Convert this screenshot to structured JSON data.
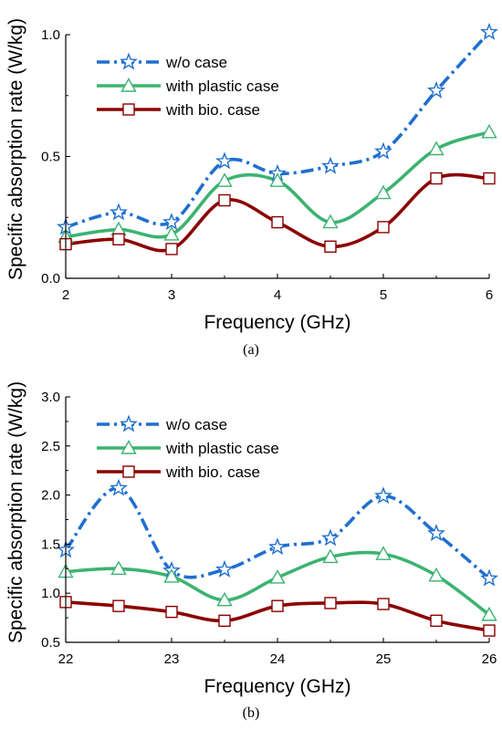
{
  "chart_data": [
    {
      "type": "line",
      "caption": "(a)",
      "xlabel": "Frequency (GHz)",
      "ylabel": "Specific absorption rate (W/kg)",
      "xlim": [
        2,
        6
      ],
      "ylim": [
        0.0,
        1.0
      ],
      "xticks": [
        "2",
        "3",
        "4",
        "5",
        "6"
      ],
      "yticks": [
        "0.0",
        "0.5",
        "1.0"
      ],
      "legend_position": "top-left",
      "x": [
        2,
        2.5,
        3,
        3.5,
        4,
        4.5,
        5,
        5.5,
        6
      ],
      "series": [
        {
          "name": "w/o case",
          "color": "#1f6fd0",
          "marker": "star",
          "dash": "dashdot",
          "values": [
            0.21,
            0.27,
            0.23,
            0.48,
            0.43,
            0.46,
            0.52,
            0.77,
            1.01
          ]
        },
        {
          "name": "with plastic case",
          "color": "#3cb371",
          "marker": "triangle",
          "dash": "solid",
          "values": [
            0.17,
            0.2,
            0.18,
            0.4,
            0.4,
            0.23,
            0.35,
            0.53,
            0.6
          ]
        },
        {
          "name": "with bio. case",
          "color": "#8b0000",
          "marker": "square",
          "dash": "solid",
          "values": [
            0.14,
            0.16,
            0.12,
            0.32,
            0.23,
            0.13,
            0.21,
            0.41,
            0.41
          ]
        }
      ]
    },
    {
      "type": "line",
      "caption": "(b)",
      "xlabel": "Frequency (GHz)",
      "ylabel": "Specific absorption rate (W/kg)",
      "xlim": [
        22,
        26
      ],
      "ylim": [
        0.5,
        3.0
      ],
      "xticks": [
        "22",
        "23",
        "24",
        "25",
        "26"
      ],
      "yticks": [
        "0.5",
        "1.0",
        "1.5",
        "2.0",
        "2.5",
        "3.0"
      ],
      "legend_position": "top-left",
      "x": [
        22,
        22.5,
        23,
        23.5,
        24,
        24.5,
        25,
        25.5,
        26
      ],
      "series": [
        {
          "name": "w/o case",
          "color": "#1f6fd0",
          "marker": "star",
          "dash": "dashdot",
          "values": [
            1.44,
            2.07,
            1.23,
            1.24,
            1.47,
            1.56,
            1.99,
            1.61,
            1.15
          ]
        },
        {
          "name": "with plastic case",
          "color": "#3cb371",
          "marker": "triangle",
          "dash": "solid",
          "values": [
            1.22,
            1.25,
            1.17,
            0.93,
            1.16,
            1.37,
            1.4,
            1.18,
            0.78
          ]
        },
        {
          "name": "with bio. case",
          "color": "#8b0000",
          "marker": "square",
          "dash": "solid",
          "values": [
            0.91,
            0.87,
            0.81,
            0.72,
            0.87,
            0.9,
            0.89,
            0.72,
            0.62
          ]
        }
      ]
    }
  ]
}
